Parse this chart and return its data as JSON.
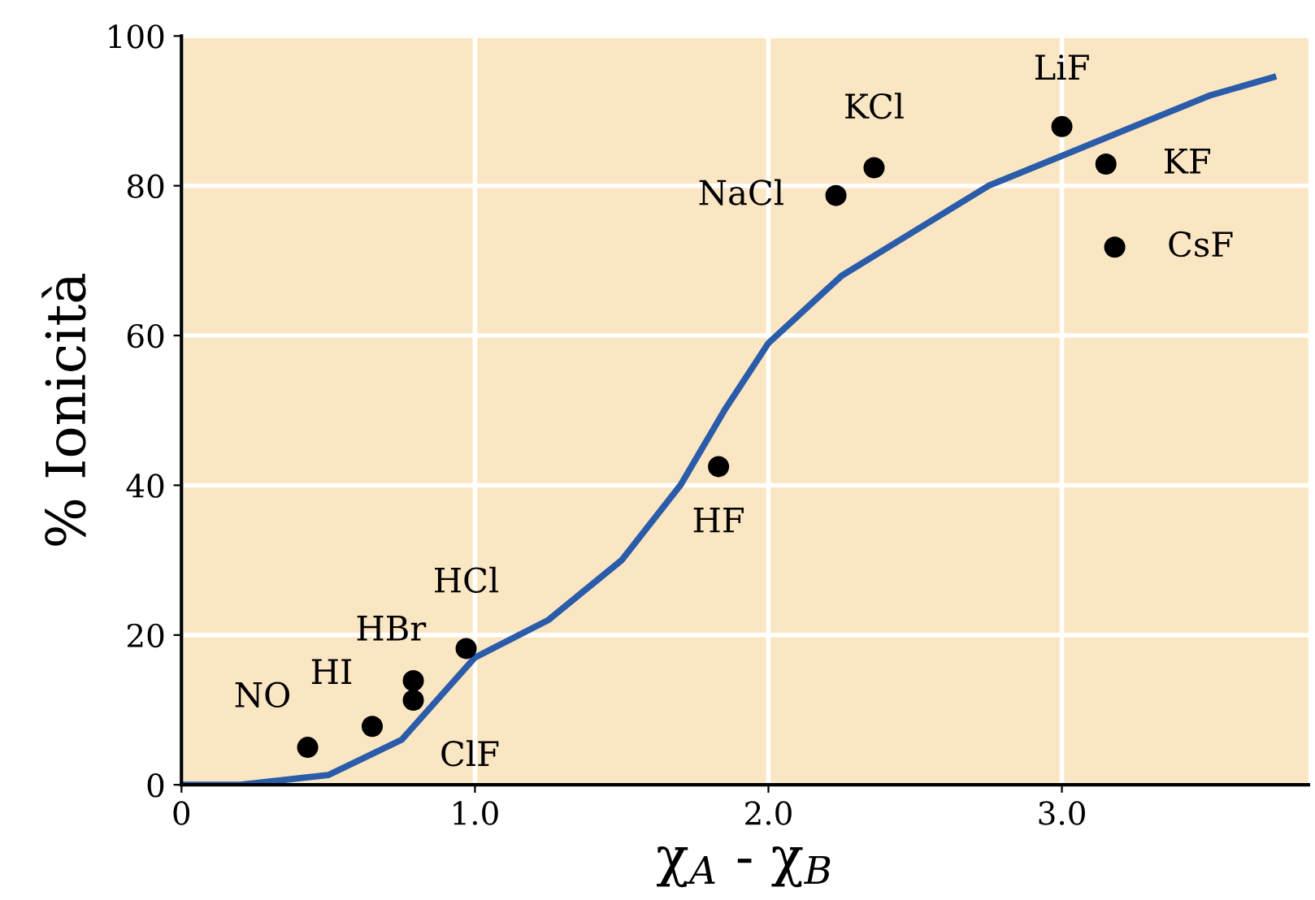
{
  "chart_data": {
    "type": "scatter",
    "xlabel": "χ$_{A}$ - χ$_{B}$",
    "ylabel": "% Ionicità",
    "xlim": [
      0,
      3.84
    ],
    "ylim": [
      0,
      100
    ],
    "xticks": [
      0,
      {
        "value": 1,
        "label": "1.0"
      },
      {
        "value": 2,
        "label": "2.0"
      },
      {
        "value": 3,
        "label": "3.0"
      }
    ],
    "yticks": [
      0,
      20,
      40,
      60,
      80,
      100
    ],
    "grid": true,
    "marker": "circle",
    "series": [
      {
        "color": "#000000",
        "x": [
          0.43,
          0.65,
          0.79,
          0.79,
          0.97,
          1.83,
          2.23,
          2.36,
          3.0,
          3.15,
          3.18
        ],
        "values": [
          5.0,
          7.8,
          11.3,
          13.9,
          18.2,
          42.5,
          78.7,
          82.4,
          87.9,
          82.9,
          71.8
        ]
      },
      {
        "type": "line",
        "color": "#2a5caa",
        "marker": "none",
        "x": [
          0,
          0.2,
          0.5,
          0.75,
          1.0,
          1.25,
          1.5,
          1.7,
          1.85,
          2.0,
          2.25,
          2.5,
          2.75,
          3.0,
          3.25,
          3.5,
          3.72
        ],
        "values": [
          0,
          0,
          1.3,
          6,
          17,
          22,
          30,
          40,
          50,
          59,
          68,
          74,
          80,
          84,
          88,
          92,
          94.5
        ]
      }
    ],
    "annotations": [
      {
        "text": "NO",
        "x": 0.43,
        "y": 5.0
      },
      {
        "text": "HI",
        "x": 0.65,
        "y": 7.8
      },
      {
        "text": "ClF",
        "x": 0.79,
        "y": 11.3
      },
      {
        "text": "HBr",
        "x": 0.79,
        "y": 13.9
      },
      {
        "text": "HCl",
        "x": 0.97,
        "y": 18.2
      },
      {
        "text": "HF",
        "x": 1.83,
        "y": 42.5
      },
      {
        "text": "NaCl",
        "x": 2.23,
        "y": 78.7
      },
      {
        "text": "KCl",
        "x": 2.36,
        "y": 82.4
      },
      {
        "text": "LiF",
        "x": 3.0,
        "y": 87.9
      },
      {
        "text": "KF",
        "x": 3.15,
        "y": 82.9
      },
      {
        "text": "CsF",
        "x": 3.18,
        "y": 71.8
      }
    ]
  }
}
